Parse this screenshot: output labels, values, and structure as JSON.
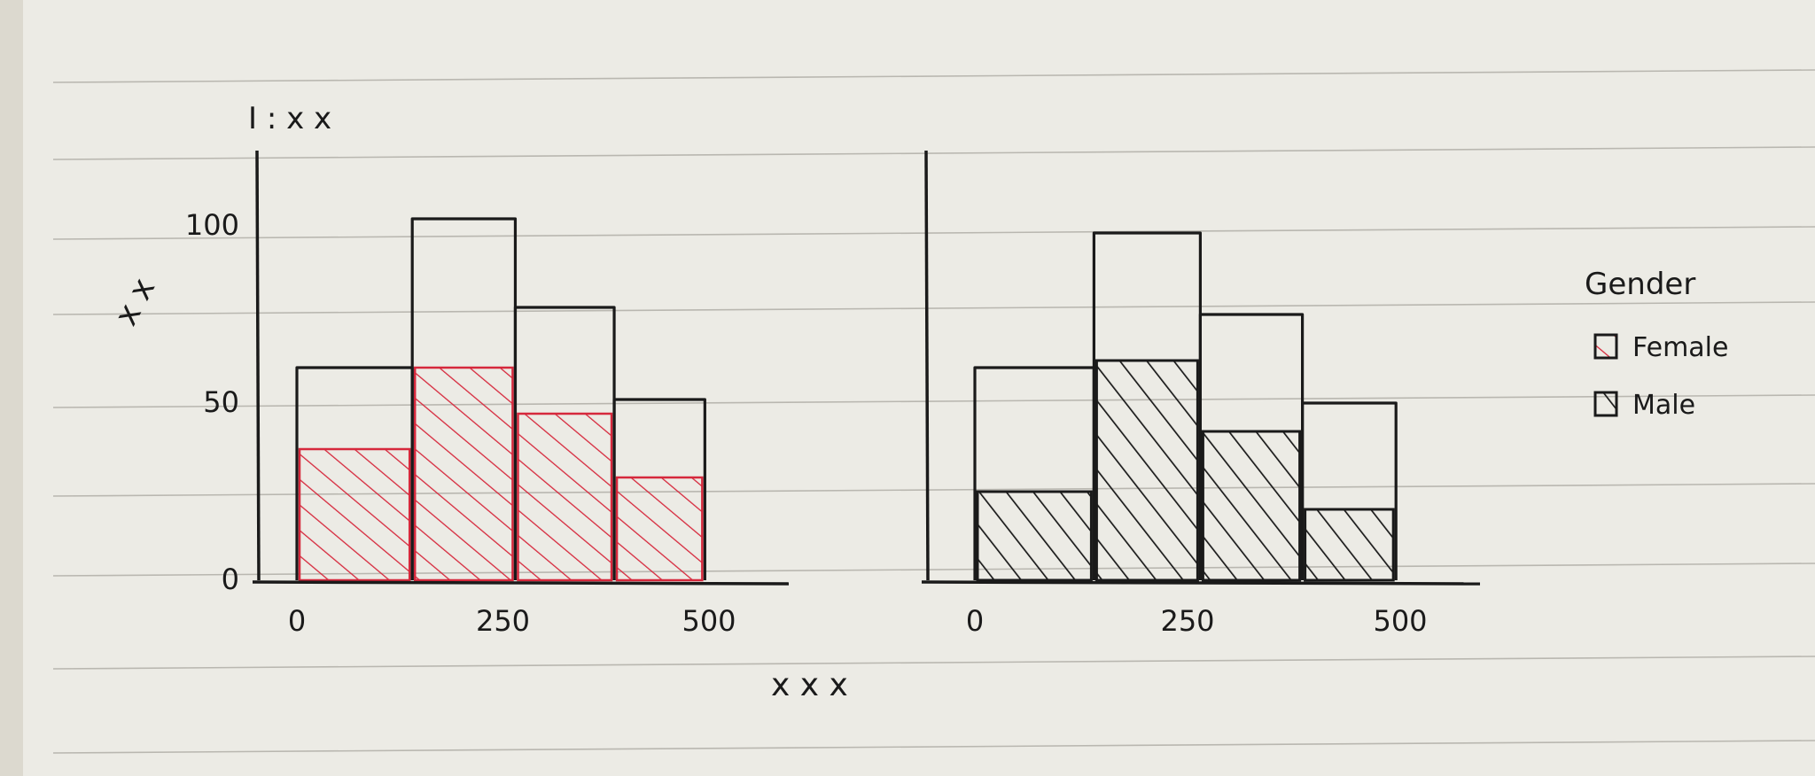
{
  "chart_data": {
    "type": "bar",
    "subtype": "faceted-stacked-histogram",
    "ylabel": "x x",
    "xlabel": "x x x",
    "ylim": [
      0,
      130
    ],
    "legend": {
      "title": "Gender",
      "placement": "right",
      "entries": [
        {
          "name": "Female",
          "color": "#d6283c"
        },
        {
          "name": "Male",
          "color": "#1a1a1a"
        }
      ]
    },
    "facets": [
      {
        "title": "I : x x",
        "color": "#d6283c",
        "xticks": [
          {
            "value": 0,
            "label": "0"
          },
          {
            "value": 250,
            "label": "250"
          },
          {
            "value": 500,
            "label": "500"
          }
        ],
        "yticks": [
          {
            "value": 0,
            "label": "0"
          },
          {
            "value": 50,
            "label": "50"
          },
          {
            "value": 100,
            "label": "100"
          }
        ],
        "bins": [
          {
            "x0": 0,
            "x1": 140,
            "total": 60,
            "filled": 37
          },
          {
            "x0": 140,
            "x1": 265,
            "total": 102,
            "filled": 60
          },
          {
            "x0": 265,
            "x1": 385,
            "total": 77,
            "filled": 47
          },
          {
            "x0": 385,
            "x1": 495,
            "total": 51,
            "filled": 29
          }
        ]
      },
      {
        "title": "",
        "color": "#1a1a1a",
        "xticks": [
          {
            "value": 0,
            "label": "0"
          },
          {
            "value": 250,
            "label": "250"
          },
          {
            "value": 500,
            "label": "500"
          }
        ],
        "yticks": [],
        "bins": [
          {
            "x0": 0,
            "x1": 140,
            "total": 60,
            "filled": 25
          },
          {
            "x0": 140,
            "x1": 265,
            "total": 98,
            "filled": 62
          },
          {
            "x0": 265,
            "x1": 385,
            "total": 75,
            "filled": 42
          },
          {
            "x0": 385,
            "x1": 495,
            "total": 50,
            "filled": 20
          }
        ]
      }
    ]
  }
}
